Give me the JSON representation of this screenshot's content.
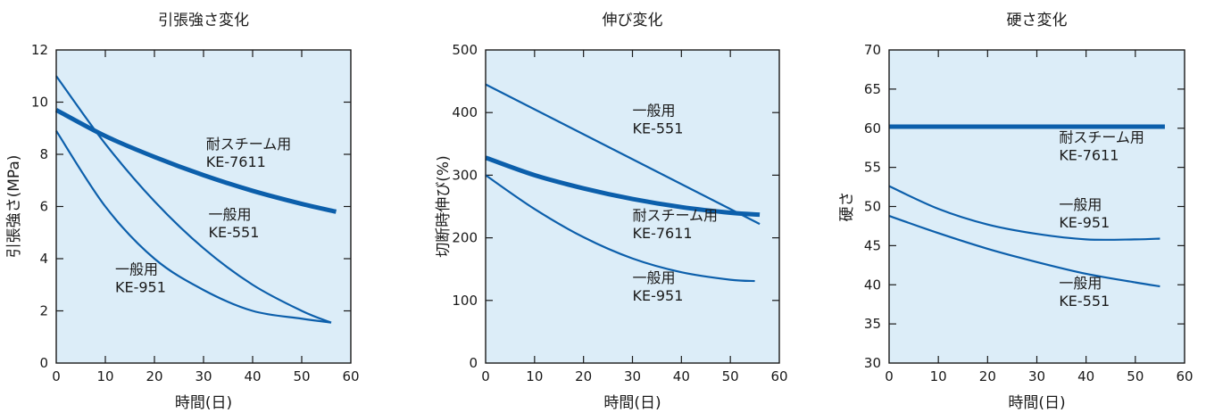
{
  "colors": {
    "plot_bg": "#dcedf8",
    "line": "#0c5fab",
    "axis": "#1a1a1a"
  },
  "chart_data": [
    {
      "type": "line",
      "title": "引張強さ変化",
      "xlabel": "時間(日)",
      "ylabel": "引張強さ(MPa)",
      "xlim": [
        0,
        60
      ],
      "ylim": [
        0,
        12
      ],
      "xticks": [
        0,
        10,
        20,
        30,
        40,
        50,
        60
      ],
      "yticks": [
        0,
        2,
        4,
        6,
        8,
        10,
        12
      ],
      "grid": false,
      "series": [
        {
          "thick": true,
          "x": [
            0,
            10,
            20,
            30,
            40,
            50,
            57
          ],
          "y": [
            9.7,
            8.7,
            7.9,
            7.2,
            6.6,
            6.1,
            5.8
          ]
        },
        {
          "thick": false,
          "x": [
            0,
            10,
            20,
            30,
            40,
            50,
            56
          ],
          "y": [
            11.0,
            8.4,
            6.2,
            4.4,
            3.0,
            2.0,
            1.55
          ]
        },
        {
          "thick": false,
          "x": [
            0,
            10,
            20,
            30,
            40,
            50,
            56
          ],
          "y": [
            8.9,
            6.0,
            4.0,
            2.8,
            2.0,
            1.7,
            1.55
          ]
        }
      ],
      "annotations": [
        {
          "lines": [
            "耐スチーム用",
            "KE-7611"
          ],
          "x": 30.5,
          "y": 8.2
        },
        {
          "lines": [
            "一般用",
            "KE-551"
          ],
          "x": 31,
          "y": 5.5
        },
        {
          "lines": [
            "一般用",
            "KE-951"
          ],
          "x": 12,
          "y": 3.4
        }
      ]
    },
    {
      "type": "line",
      "title": "伸び変化",
      "xlabel": "時間(日)",
      "ylabel": "切断時伸び(%)",
      "xlim": [
        0,
        60
      ],
      "ylim": [
        0,
        500
      ],
      "xticks": [
        0,
        10,
        20,
        30,
        40,
        50,
        60
      ],
      "yticks": [
        0,
        100,
        200,
        300,
        400,
        500
      ],
      "grid": false,
      "series": [
        {
          "thick": true,
          "x": [
            0,
            10,
            20,
            30,
            40,
            50,
            56
          ],
          "y": [
            328,
            300,
            279,
            262,
            249,
            240,
            237
          ]
        },
        {
          "thick": false,
          "x": [
            0,
            56
          ],
          "y": [
            445,
            222
          ]
        },
        {
          "thick": false,
          "x": [
            0,
            10,
            20,
            30,
            40,
            50,
            55
          ],
          "y": [
            300,
            246,
            201,
            167,
            145,
            133,
            131
          ]
        }
      ],
      "annotations": [
        {
          "lines": [
            "一般用",
            "KE-551"
          ],
          "x": 30,
          "y": 395
        },
        {
          "lines": [
            "耐スチーム用",
            "KE-7611"
          ],
          "x": 30,
          "y": 228
        },
        {
          "lines": [
            "一般用",
            "KE-951"
          ],
          "x": 30,
          "y": 128
        }
      ]
    },
    {
      "type": "line",
      "title": "硬さ変化",
      "xlabel": "時間(日)",
      "ylabel": "硬さ",
      "xlim": [
        0,
        60
      ],
      "ylim": [
        30,
        70
      ],
      "xticks": [
        0,
        10,
        20,
        30,
        40,
        50,
        60
      ],
      "yticks": [
        30,
        35,
        40,
        45,
        50,
        55,
        60,
        65,
        70
      ],
      "grid": false,
      "series": [
        {
          "thick": true,
          "x": [
            0,
            56
          ],
          "y": [
            60.2,
            60.2
          ]
        },
        {
          "thick": false,
          "x": [
            0,
            10,
            20,
            30,
            40,
            50,
            55
          ],
          "y": [
            52.6,
            49.7,
            47.7,
            46.5,
            45.8,
            45.8,
            45.9
          ]
        },
        {
          "thick": false,
          "x": [
            0,
            10,
            20,
            30,
            40,
            50,
            55
          ],
          "y": [
            48.8,
            46.6,
            44.6,
            42.9,
            41.4,
            40.3,
            39.8
          ]
        }
      ],
      "annotations": [
        {
          "lines": [
            "耐スチーム用",
            "KE-7611"
          ],
          "x": 34.5,
          "y": 58.2
        },
        {
          "lines": [
            "一般用",
            "KE-951"
          ],
          "x": 34.5,
          "y": 49.6
        },
        {
          "lines": [
            "一般用",
            "KE-551"
          ],
          "x": 34.5,
          "y": 39.6
        }
      ]
    }
  ]
}
